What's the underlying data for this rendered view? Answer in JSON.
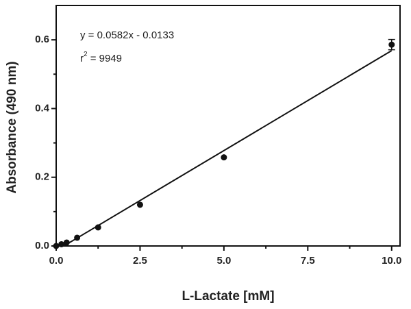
{
  "chart_data": {
    "type": "scatter",
    "x_title": "L-Lactate [mM]",
    "y_title": "Absorbance (490 nm)",
    "equation": "y = 0.0582x - 0.0133",
    "r2_label": {
      "base": "r",
      "sup": "2",
      "rest": " = 9949"
    },
    "x": [
      0,
      0.156,
      0.3125,
      0.625,
      1.25,
      2.5,
      5,
      10
    ],
    "values": [
      0.0,
      0.005,
      0.01,
      0.024,
      0.054,
      0.12,
      0.258,
      0.586
    ],
    "errors": [
      null,
      null,
      null,
      null,
      null,
      null,
      null,
      0.015
    ],
    "color": "#111111",
    "fit": {
      "slope": 0.0582,
      "intercept": -0.0133
    },
    "xlim": [
      0,
      10.25
    ],
    "ylim": [
      0,
      0.7
    ],
    "xticks": [
      {
        "value": 0,
        "label": "0.0"
      },
      {
        "value": 2.5,
        "label": "2.5"
      },
      {
        "value": 5,
        "label": "5.0"
      },
      {
        "value": 7.5,
        "label": "7.5"
      },
      {
        "value": 10,
        "label": "10.0"
      }
    ],
    "x_minor_ticks": [
      1.25,
      3.75,
      6.25,
      8.75
    ],
    "yticks": [
      {
        "value": 0,
        "label": "0.0"
      },
      {
        "value": 0.2,
        "label": "0.2"
      },
      {
        "value": 0.4,
        "label": "0.4"
      },
      {
        "value": 0.6,
        "label": "0.6"
      }
    ],
    "y_minor_ticks": [
      0.1,
      0.3,
      0.5
    ]
  }
}
